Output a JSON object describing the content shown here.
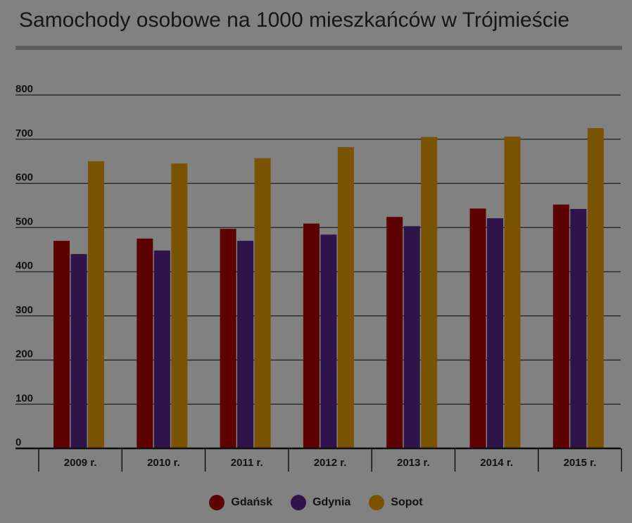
{
  "title": "Samochody osobowe na 1000 mieszkańców w Trójmieście",
  "chart_data": {
    "type": "bar",
    "title": "Samochody osobowe na 1000 mieszkańców w Trójmieście",
    "categories": [
      "2009 r.",
      "2010 r.",
      "2011 r.",
      "2012 r.",
      "2013 r.",
      "2014 r.",
      "2015 r."
    ],
    "series": [
      {
        "name": "Gdańsk",
        "color": "#5e0000",
        "values": [
          470,
          475,
          497,
          509,
          524,
          543,
          552
        ]
      },
      {
        "name": "Gdynia",
        "color": "#2e1448",
        "values": [
          440,
          448,
          470,
          484,
          503,
          521,
          542
        ]
      },
      {
        "name": "Sopot",
        "color": "#7a5200",
        "values": [
          650,
          645,
          657,
          682,
          705,
          706,
          725
        ]
      }
    ],
    "ylim": [
      0,
      800
    ],
    "yticks": [
      0,
      100,
      200,
      300,
      400,
      500,
      600,
      700,
      800
    ],
    "ytick_labels": [
      "0",
      "100",
      "200",
      "300",
      "400",
      "500",
      "600",
      "700",
      "800"
    ],
    "grid": true,
    "legend_position": "bottom"
  }
}
